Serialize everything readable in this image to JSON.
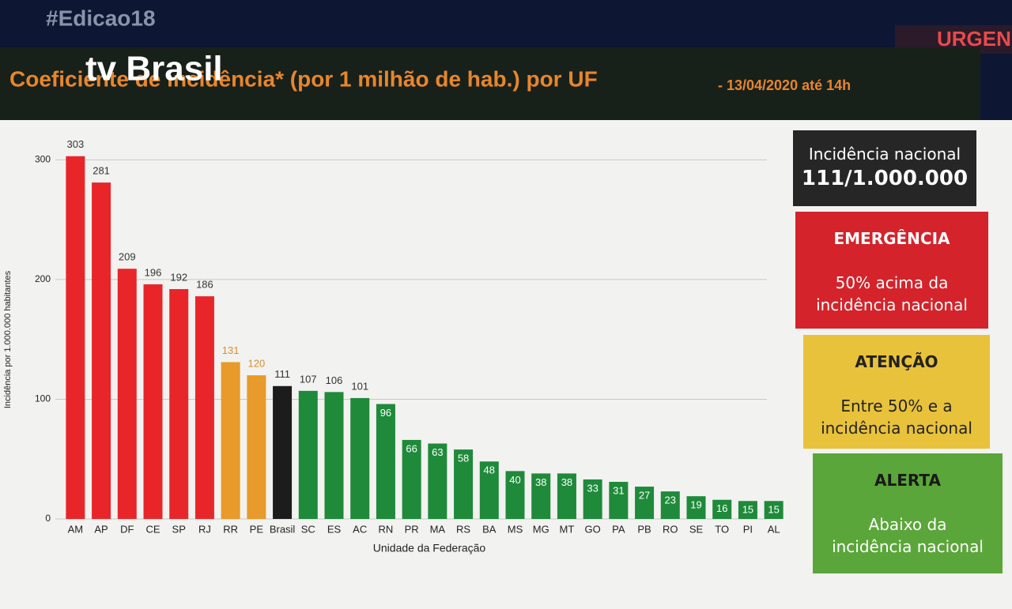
{
  "chart_data": {
    "type": "bar",
    "title": "Coeficiente de incidência* (por 1 milhão de hab.) por UF",
    "subtitle": "- 13/04/2020 até 14h",
    "x_label": "Unidade da Federação",
    "y_label": "Incidência por 1.000.000 habitantes",
    "categories": [
      "AM",
      "AP",
      "DF",
      "CE",
      "SP",
      "RJ",
      "RR",
      "PE",
      "Brasil",
      "SC",
      "ES",
      "AC",
      "RN",
      "PR",
      "MA",
      "RS",
      "BA",
      "MS",
      "MG",
      "MT",
      "GO",
      "PA",
      "PB",
      "RO",
      "SE",
      "TO",
      "PI",
      "AL"
    ],
    "values": [
      303,
      281,
      209,
      196,
      192,
      186,
      131,
      120,
      111,
      107,
      106,
      101,
      96,
      66,
      63,
      58,
      48,
      40,
      38,
      38,
      33,
      31,
      27,
      23,
      19,
      16,
      15,
      15
    ],
    "colors": [
      "#e8262a",
      "#e8262a",
      "#e8262a",
      "#e8262a",
      "#e8262a",
      "#e8262a",
      "#e89a2a",
      "#e89a2a",
      "#1c1c1c",
      "#1e8a3a",
      "#1e8a3a",
      "#1e8a3a",
      "#1e8a3a",
      "#1e8a3a",
      "#1e8a3a",
      "#1e8a3a",
      "#1e8a3a",
      "#1e8a3a",
      "#1e8a3a",
      "#1e8a3a",
      "#1e8a3a",
      "#1e8a3a",
      "#1e8a3a",
      "#1e8a3a",
      "#1e8a3a",
      "#1e8a3a",
      "#1e8a3a",
      "#1e8a3a"
    ],
    "ylim": [
      0,
      320
    ],
    "yticks": [
      0,
      100,
      200,
      300
    ],
    "grid": true
  },
  "overlay": {
    "hashtag": "#Edicao18",
    "logo": "tv Brasil",
    "badge": "URGEN"
  },
  "panel": {
    "national_label": "Incidência nacional",
    "national_value": "111/1.000.000",
    "levels": [
      {
        "title": "EMERGÊNCIA",
        "text": "50% acima da incidência nacional"
      },
      {
        "title": "ATENÇÃO",
        "text": "Entre 50% e a incidência nacional"
      },
      {
        "title": "ALERTA",
        "text": "Abaixo da incidência nacional"
      }
    ]
  }
}
